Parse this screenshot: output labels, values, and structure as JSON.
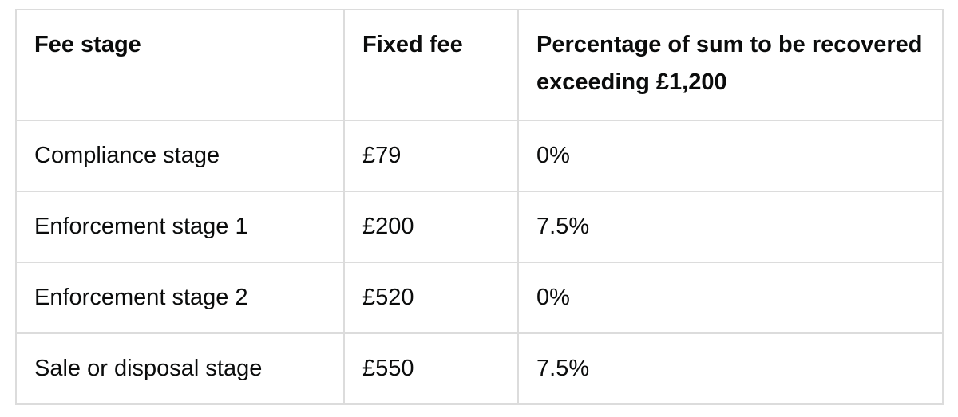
{
  "table": {
    "headers": [
      "Fee stage",
      "Fixed fee",
      "Percentage of sum to be recovered exceeding £1,200"
    ],
    "rows": [
      [
        "Compliance stage",
        "£79",
        "0%"
      ],
      [
        "Enforcement stage 1",
        "£200",
        "7.5%"
      ],
      [
        "Enforcement stage 2",
        "£520",
        "0%"
      ],
      [
        "Sale or disposal stage",
        "£550",
        "7.5%"
      ]
    ]
  }
}
